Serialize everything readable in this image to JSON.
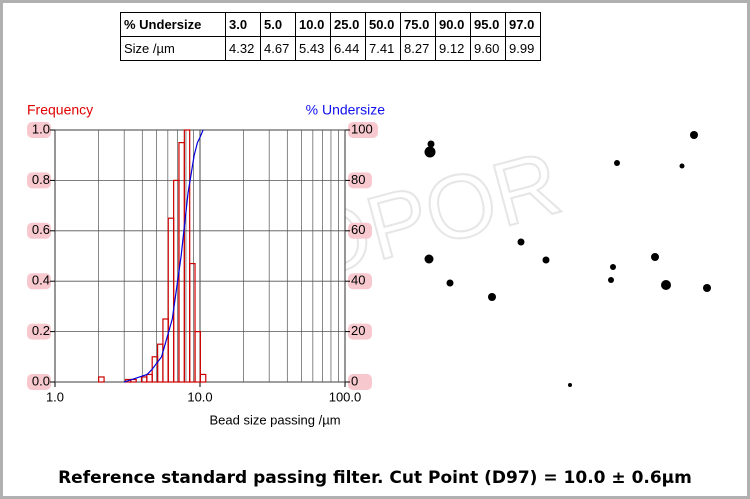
{
  "table": {
    "rows": [
      [
        "% Undersize",
        "3.0",
        "5.0",
        "10.0",
        "25.0",
        "50.0",
        "75.0",
        "90.0",
        "95.0",
        "97.0"
      ],
      [
        "Size /µm",
        "4.32",
        "4.67",
        "5.43",
        "6.44",
        "7.41",
        "8.27",
        "9.12",
        "9.60",
        "9.99"
      ]
    ]
  },
  "chart_data": {
    "type": "histogram",
    "y_label": "Frequency",
    "y2_label": "% Undersize",
    "x_label": "Bead size passing /µm",
    "watermark": "COPOR",
    "xlog": true,
    "xlim": [
      1,
      100
    ],
    "xticks": [
      {
        "value": 1,
        "label": "1.0"
      },
      {
        "value": 10,
        "label": "10.0"
      },
      {
        "value": 100,
        "label": "100.0"
      }
    ],
    "x_minor_grid": [
      2,
      3,
      4,
      5,
      6,
      7,
      8,
      9,
      20,
      30,
      40,
      50,
      60,
      70,
      80,
      90
    ],
    "ylim": [
      0,
      1
    ],
    "yticks": [
      {
        "value": 0,
        "label": "0.0"
      },
      {
        "value": 0.2,
        "label": "0.2"
      },
      {
        "value": 0.4,
        "label": "0.4"
      },
      {
        "value": 0.6,
        "label": "0.6"
      },
      {
        "value": 0.8,
        "label": "0.8"
      },
      {
        "value": 1,
        "label": "1.0"
      }
    ],
    "y2lim": [
      0,
      100
    ],
    "y2ticks": [
      0,
      20,
      40,
      60,
      80,
      100
    ],
    "grid": true,
    "bins": [
      2.0,
      2.18,
      2.37,
      2.58,
      2.81,
      3.06,
      3.33,
      3.63,
      3.95,
      4.3,
      4.68,
      5.1,
      5.55,
      6.04,
      6.58,
      7.16,
      7.8,
      8.49,
      9.24,
      10.06,
      10.96
    ],
    "counts": [
      0.02,
      0,
      0,
      0,
      0,
      0.01,
      0.01,
      0,
      0.02,
      0.03,
      0.1,
      0.15,
      0.25,
      0.65,
      0.8,
      0.95,
      1.0,
      0.47,
      0.2,
      0.03
    ],
    "color": "#cc0000",
    "line": {
      "axis": "y2",
      "color": "#0000dd",
      "x": [
        3.0,
        4.32,
        4.67,
        5.43,
        6.44,
        7.41,
        8.27,
        9.12,
        9.6,
        9.99,
        10.5
      ],
      "values": [
        0,
        3,
        5,
        10,
        25,
        50,
        75,
        90,
        95,
        97,
        100
      ]
    }
  },
  "caption": "Reference standard passing filter. Cut Point (D97) = 10.0 ± 0.6µm"
}
